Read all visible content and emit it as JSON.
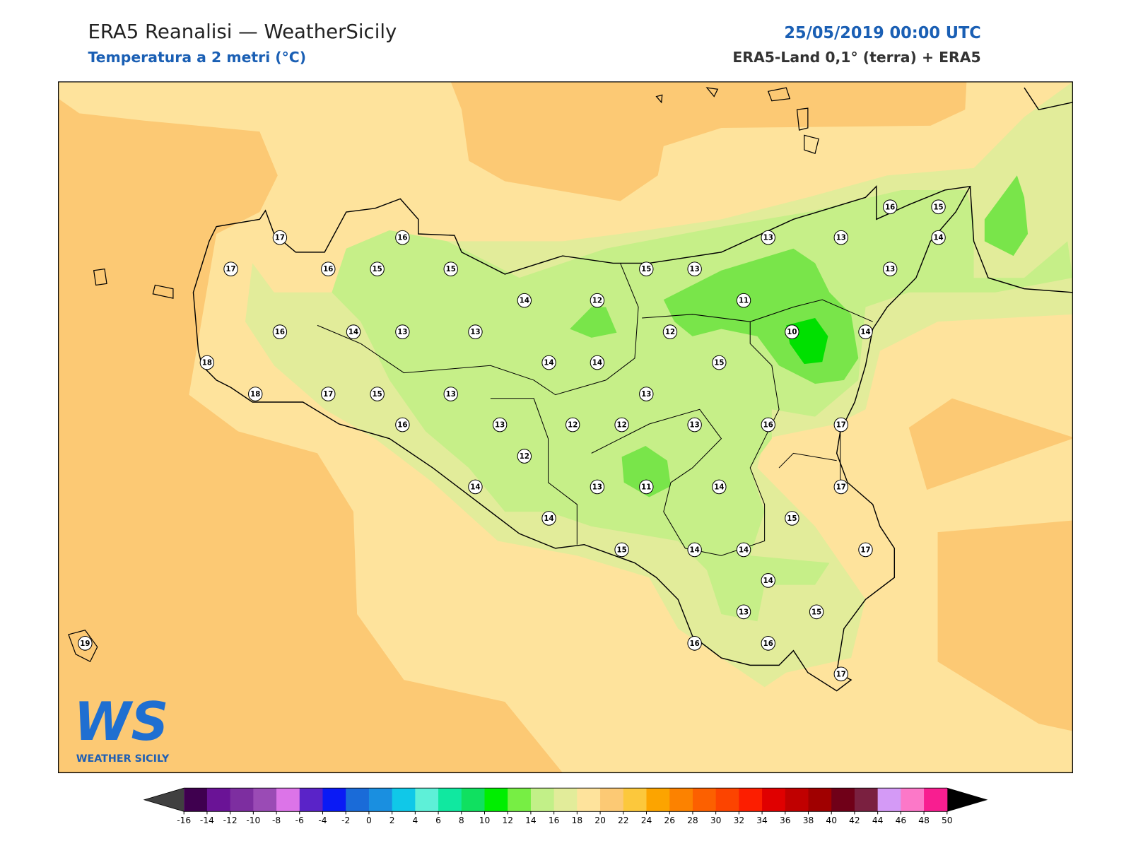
{
  "header": {
    "title": "ERA5 Reanalisi — WeatherSicily",
    "subtitle": "Temperatura a 2 metri (°C)",
    "datetime": "25/05/2019 00:00 UTC",
    "source": "ERA5-Land 0,1° (terra) + ERA5"
  },
  "stations": [
    17,
    16,
    17,
    16,
    15,
    15,
    14,
    12,
    16,
    14,
    13,
    13,
    18,
    14,
    14,
    18,
    17,
    15,
    13,
    16,
    13,
    12,
    12,
    12,
    14,
    13,
    14,
    15,
    15,
    13,
    13,
    13,
    16,
    15,
    14,
    13,
    11,
    12,
    10,
    14,
    15,
    13,
    13,
    16,
    17,
    11,
    14,
    17,
    15,
    17,
    14,
    14,
    14,
    13,
    15,
    16,
    16,
    17,
    19
  ],
  "colorbar": {
    "ticks": [
      -16,
      -14,
      -12,
      -10,
      -8,
      -6,
      -4,
      -2,
      0,
      2,
      4,
      6,
      8,
      10,
      12,
      14,
      16,
      18,
      20,
      22,
      24,
      26,
      28,
      30,
      32,
      34,
      36,
      38,
      40,
      42,
      44,
      46,
      48,
      50
    ],
    "colors": [
      "#3f004f",
      "#6a1396",
      "#7d2ea0",
      "#9a4bb5",
      "#dc74e8",
      "#5a23c8",
      "#0a1af5",
      "#1a6bd8",
      "#1a8fe0",
      "#10c8e8",
      "#5ef0d8",
      "#10e8a0",
      "#10e060",
      "#00ee00",
      "#77ee44",
      "#c2f088",
      "#e2ec9a",
      "#fee39c",
      "#fcc974",
      "#fcc83c",
      "#fca400",
      "#fc8200",
      "#fc6000",
      "#fc4400",
      "#fc1e00",
      "#e00000",
      "#c00000",
      "#a00000",
      "#700018",
      "#7a2040",
      "#d49af6",
      "#fc78c8",
      "#f81e90",
      "#808080",
      "#383838"
    ],
    "under_color": "#404040",
    "over_color": "#000000"
  },
  "logo": {
    "mark": "WS",
    "name": "WEATHER SICILY"
  }
}
